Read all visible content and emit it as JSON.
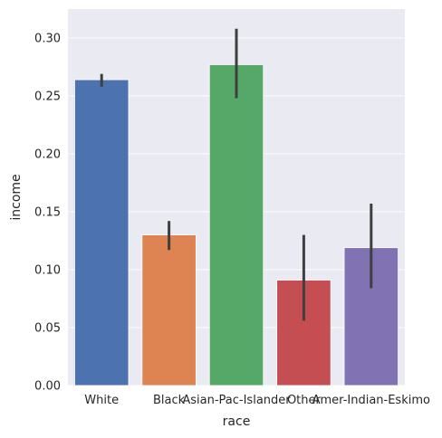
{
  "chart_data": {
    "type": "bar",
    "xlabel": "race",
    "ylabel": "income",
    "categories": [
      "White",
      "Black",
      "Asian-Pac-Islander",
      "Other",
      "Amer-Indian-Eskimo"
    ],
    "values": [
      0.264,
      0.13,
      0.277,
      0.091,
      0.119
    ],
    "ci_low": [
      0.258,
      0.117,
      0.248,
      0.056,
      0.084
    ],
    "ci_high": [
      0.269,
      0.142,
      0.308,
      0.13,
      0.157
    ],
    "colors": [
      "#4c72b0",
      "#dd8452",
      "#55a868",
      "#c44e52",
      "#8172b3"
    ],
    "ylim": [
      0,
      0.325
    ],
    "yticks": [
      0.0,
      0.05,
      0.1,
      0.15,
      0.2,
      0.25,
      0.3
    ],
    "ytick_labels": [
      "0.00",
      "0.05",
      "0.10",
      "0.15",
      "0.20",
      "0.25",
      "0.30"
    ],
    "grid": true,
    "background": "#eaeaf2",
    "errorbar_color": "#3f3f3f"
  }
}
